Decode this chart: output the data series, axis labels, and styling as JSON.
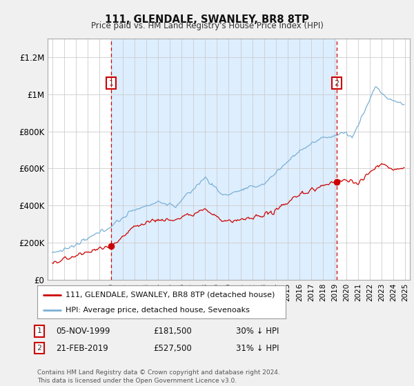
{
  "title": "111, GLENDALE, SWANLEY, BR8 8TP",
  "subtitle": "Price paid vs. HM Land Registry's House Price Index (HPI)",
  "red_label": "111, GLENDALE, SWANLEY, BR8 8TP (detached house)",
  "blue_label": "HPI: Average price, detached house, Sevenoaks",
  "annotation1_num": "1",
  "annotation1_date": "05-NOV-1999",
  "annotation1_price": "£181,500",
  "annotation1_hpi": "30% ↓ HPI",
  "annotation2_num": "2",
  "annotation2_date": "21-FEB-2019",
  "annotation2_price": "£527,500",
  "annotation2_hpi": "31% ↓ HPI",
  "footer": "Contains HM Land Registry data © Crown copyright and database right 2024.\nThis data is licensed under the Open Government Licence v3.0.",
  "ylim": [
    0,
    1300000
  ],
  "yticks": [
    0,
    200000,
    400000,
    600000,
    800000,
    1000000,
    1200000
  ],
  "ytick_labels": [
    "£0",
    "£200K",
    "£400K",
    "£600K",
    "£800K",
    "£1M",
    "£1.2M"
  ],
  "bg_color": "#f0f0f0",
  "plot_bg_color": "#ffffff",
  "shade_color": "#ddeeff",
  "red_color": "#cc0000",
  "blue_color": "#7ab0d4",
  "vline_color": "#cc0000",
  "sale1_year": 2000.0,
  "sale2_year": 2019.17,
  "sale1_price": 181500,
  "sale2_price": 527500,
  "xlim_left": 1994.6,
  "xlim_right": 2025.4
}
